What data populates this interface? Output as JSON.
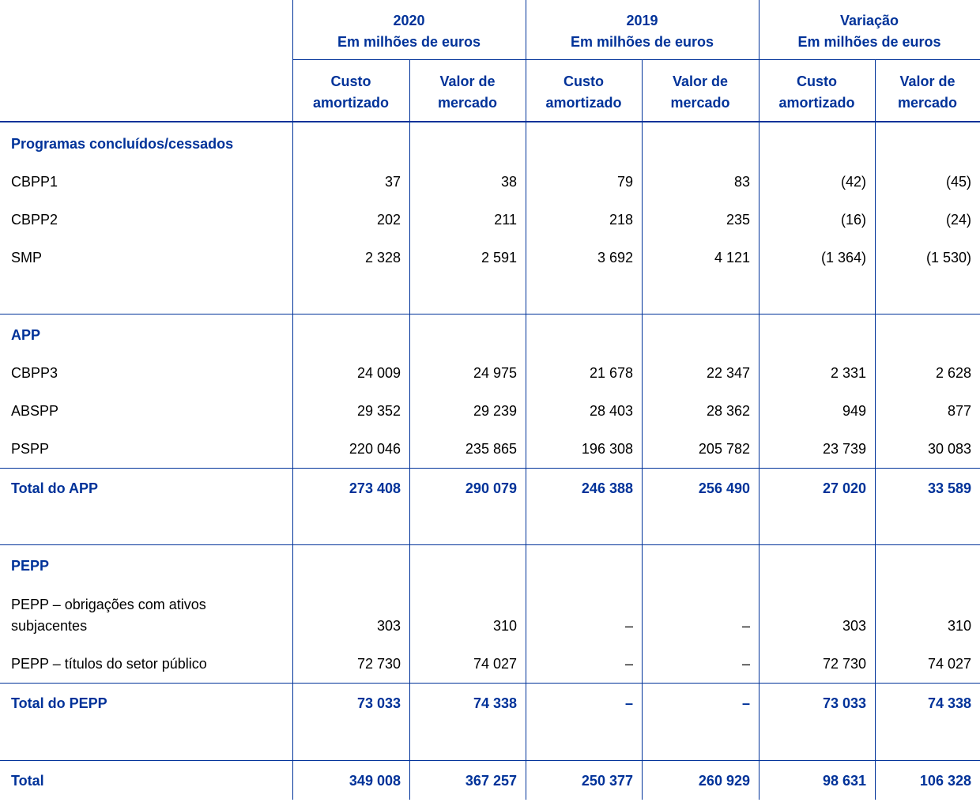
{
  "table": {
    "groups": [
      {
        "title": "2020",
        "subtitle": "Em milhões de euros"
      },
      {
        "title": "2019",
        "subtitle": "Em milhões de euros"
      },
      {
        "title": "Variação",
        "subtitle": "Em milhões de euros"
      }
    ],
    "subheaders": [
      "Custo amortizado",
      "Valor de mercado",
      "Custo amortizado",
      "Valor de mercado",
      "Custo amortizado",
      "Valor de mercado"
    ],
    "rows": [
      {
        "kind": "section",
        "label": "Programas concluídos/cessados"
      },
      {
        "kind": "row",
        "label": "CBPP1",
        "values": [
          "37",
          "38",
          "79",
          "83",
          "(42)",
          "(45)"
        ]
      },
      {
        "kind": "row",
        "label": "CBPP2",
        "values": [
          "202",
          "211",
          "218",
          "235",
          "(16)",
          "(24)"
        ]
      },
      {
        "kind": "row",
        "label": "SMP",
        "values": [
          "2 328",
          "2 591",
          "3 692",
          "4 121",
          "(1 364)",
          "(1 530)"
        ]
      },
      {
        "kind": "section",
        "label": "APP"
      },
      {
        "kind": "row",
        "label": "CBPP3",
        "values": [
          "24 009",
          "24 975",
          "21 678",
          "22 347",
          "2 331",
          "2 628"
        ]
      },
      {
        "kind": "row",
        "label": "ABSPP",
        "values": [
          "29 352",
          "29 239",
          "28 403",
          "28 362",
          "949",
          "877"
        ]
      },
      {
        "kind": "row",
        "label": "PSPP",
        "values": [
          "220 046",
          "235 865",
          "196 308",
          "205 782",
          "23 739",
          "30 083"
        ]
      },
      {
        "kind": "total",
        "label": "Total do APP",
        "values": [
          "273 408",
          "290 079",
          "246 388",
          "256 490",
          "27 020",
          "33 589"
        ]
      },
      {
        "kind": "section",
        "label": "PEPP"
      },
      {
        "kind": "row",
        "label": "PEPP – obrigações com ativos subjacentes",
        "values": [
          "303",
          "310",
          "–",
          "–",
          "303",
          "310"
        ]
      },
      {
        "kind": "row",
        "label": "PEPP – títulos do setor público",
        "values": [
          "72 730",
          "74 027",
          "–",
          "–",
          "72 730",
          "74 027"
        ]
      },
      {
        "kind": "total",
        "label": "Total do PEPP",
        "values": [
          "73 033",
          "74 338",
          "–",
          "–",
          "73 033",
          "74 338"
        ]
      },
      {
        "kind": "total",
        "label": "Total",
        "values": [
          "349 008",
          "367 257",
          "250 377",
          "260 929",
          "98 631",
          "106 328"
        ]
      }
    ]
  }
}
